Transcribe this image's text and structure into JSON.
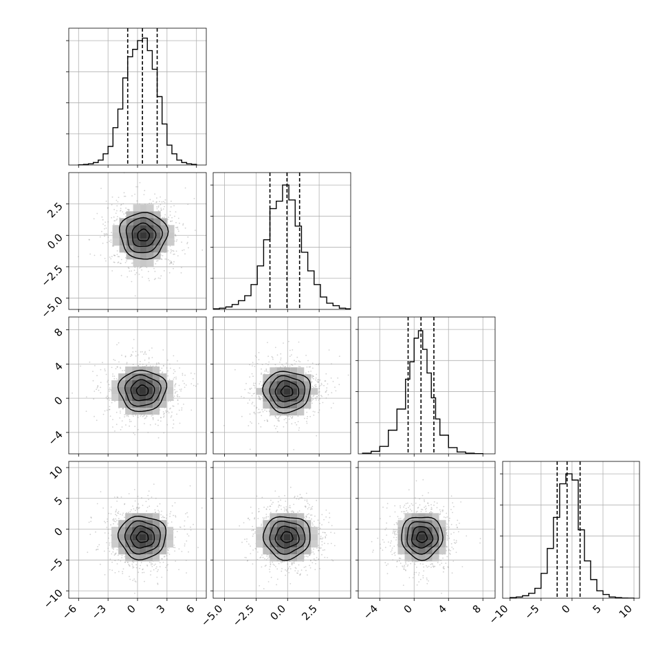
{
  "chart_data": {
    "type": "corner",
    "title": "",
    "grid": true,
    "colors": {
      "line": "#000000",
      "grid": "#b0b0b0",
      "scatter": "#9a9a9a"
    },
    "variables": [
      {
        "range": [
          -7,
          7
        ],
        "ticks": [
          -6,
          -3,
          0,
          3,
          6
        ],
        "tick_labels": [
          "−6",
          "−3",
          "0",
          "3",
          "6"
        ],
        "quantiles": [
          -1.0,
          0.5,
          2.0
        ],
        "hist_max": 1.1,
        "hist": {
          "edges": [
            -6.0,
            -5.5,
            -5.0,
            -4.5,
            -4.0,
            -3.5,
            -3.0,
            -2.5,
            -2.0,
            -1.5,
            -1.0,
            -0.5,
            0.0,
            0.5,
            1.0,
            1.5,
            2.0,
            2.5,
            3.0,
            3.5,
            4.0,
            4.5,
            5.0,
            5.5,
            6.0
          ],
          "counts": [
            0.002,
            0.005,
            0.01,
            0.02,
            0.04,
            0.09,
            0.15,
            0.3,
            0.45,
            0.7,
            0.87,
            0.93,
            1.0,
            1.02,
            0.92,
            0.77,
            0.55,
            0.33,
            0.16,
            0.09,
            0.04,
            0.02,
            0.01,
            0.005
          ]
        }
      },
      {
        "range": [
          -5.9,
          5.0
        ],
        "ticks": [
          -5.0,
          -2.5,
          0.0,
          2.5
        ],
        "tick_labels": [
          "−5.0",
          "−2.5",
          "0.0",
          "2.5"
        ],
        "quantiles": [
          -1.4,
          -0.05,
          0.95
        ],
        "hist_max": 1.1,
        "hist": {
          "edges": [
            -5.9,
            -5.4,
            -4.9,
            -4.4,
            -3.9,
            -3.4,
            -2.9,
            -2.4,
            -1.9,
            -1.4,
            -0.9,
            -0.4,
            0.1,
            0.6,
            1.1,
            1.6,
            2.1,
            2.6,
            3.1,
            3.6,
            4.1,
            4.6,
            5.0
          ],
          "counts": [
            0.005,
            0.01,
            0.02,
            0.04,
            0.07,
            0.11,
            0.2,
            0.35,
            0.56,
            0.81,
            0.87,
            1.0,
            0.88,
            0.67,
            0.46,
            0.31,
            0.2,
            0.1,
            0.05,
            0.03,
            0.01,
            0.005
          ]
        }
      },
      {
        "range": [
          -6.5,
          9.5
        ],
        "ticks": [
          -4,
          0,
          4,
          8
        ],
        "tick_labels": [
          "−4",
          "0",
          "4",
          "8"
        ],
        "quantiles": [
          -0.7,
          0.8,
          2.3
        ],
        "hist_max": 1.1,
        "hist": {
          "edges": [
            -6.0,
            -5.0,
            -4.0,
            -3.0,
            -2.0,
            -1.0,
            -0.5,
            0.0,
            0.5,
            1.0,
            1.5,
            2.0,
            2.5,
            3.0,
            4.0,
            5.0,
            6.0,
            7.0,
            8.0
          ],
          "counts": [
            0.005,
            0.02,
            0.06,
            0.19,
            0.36,
            0.6,
            0.74,
            0.93,
            0.99,
            0.84,
            0.65,
            0.45,
            0.28,
            0.15,
            0.05,
            0.015,
            0.005,
            0.002
          ]
        }
      },
      {
        "range": [
          -11.2,
          11.0
        ],
        "ticks": [
          -10,
          -5,
          0,
          5,
          10
        ],
        "tick_labels": [
          "−10",
          "−5",
          "0",
          "5",
          "10"
        ],
        "quantiles": [
          -2.4,
          -0.8,
          1.3
        ],
        "hist_max": 1.1,
        "hist": {
          "edges": [
            -10.0,
            -9.0,
            -8.0,
            -7.0,
            -6.0,
            -5.0,
            -4.0,
            -3.0,
            -2.0,
            -1.0,
            0.0,
            1.0,
            2.0,
            3.0,
            4.0,
            5.0,
            6.0,
            7.0,
            8.0,
            9.0,
            10.0
          ],
          "counts": [
            0.005,
            0.01,
            0.02,
            0.04,
            0.08,
            0.2,
            0.4,
            0.65,
            0.92,
            1.0,
            0.95,
            0.55,
            0.3,
            0.15,
            0.06,
            0.03,
            0.01,
            0.005,
            0.002,
            0.001
          ]
        }
      }
    ],
    "panels_2d": [
      {
        "row": 1,
        "col": 0,
        "center": [
          0.6,
          0.0
        ],
        "sigma": [
          2.0,
          1.55
        ],
        "contour_scale": [
          1.0,
          1.0
        ]
      },
      {
        "row": 2,
        "col": 0,
        "center": [
          0.5,
          0.9
        ],
        "sigma": [
          2.0,
          2.0
        ],
        "contour_scale": [
          1.0,
          1.0
        ]
      },
      {
        "row": 2,
        "col": 1,
        "center": [
          -0.05,
          0.8
        ],
        "sigma": [
          1.55,
          2.0
        ],
        "contour_scale": [
          1.0,
          1.0
        ]
      },
      {
        "row": 3,
        "col": 0,
        "center": [
          0.5,
          -1.3
        ],
        "sigma": [
          2.0,
          2.9
        ],
        "contour_scale": [
          1.0,
          1.0
        ]
      },
      {
        "row": 3,
        "col": 1,
        "center": [
          -0.05,
          -1.3
        ],
        "sigma": [
          1.55,
          2.9
        ],
        "contour_scale": [
          1.0,
          1.0
        ]
      },
      {
        "row": 3,
        "col": 2,
        "center": [
          0.9,
          -1.3
        ],
        "sigma": [
          2.0,
          2.9
        ],
        "contour_scale": [
          1.0,
          1.0
        ]
      }
    ]
  }
}
